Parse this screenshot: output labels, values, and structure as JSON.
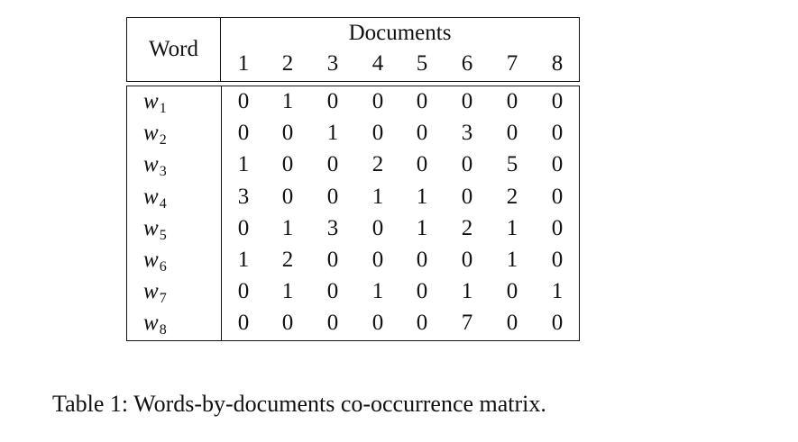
{
  "table": {
    "word_header": "Word",
    "documents_header": "Documents",
    "doc_numbers": [
      "1",
      "2",
      "3",
      "4",
      "5",
      "6",
      "7",
      "8"
    ],
    "rows": [
      {
        "word": "w",
        "sub": "1",
        "values": [
          "0",
          "1",
          "0",
          "0",
          "0",
          "0",
          "0",
          "0"
        ]
      },
      {
        "word": "w",
        "sub": "2",
        "values": [
          "0",
          "0",
          "1",
          "0",
          "0",
          "3",
          "0",
          "0"
        ]
      },
      {
        "word": "w",
        "sub": "3",
        "values": [
          "1",
          "0",
          "0",
          "2",
          "0",
          "0",
          "5",
          "0"
        ]
      },
      {
        "word": "w",
        "sub": "4",
        "values": [
          "3",
          "0",
          "0",
          "1",
          "1",
          "0",
          "2",
          "0"
        ]
      },
      {
        "word": "w",
        "sub": "5",
        "values": [
          "0",
          "1",
          "3",
          "0",
          "1",
          "2",
          "1",
          "0"
        ]
      },
      {
        "word": "w",
        "sub": "6",
        "values": [
          "1",
          "2",
          "0",
          "0",
          "0",
          "0",
          "1",
          "0"
        ]
      },
      {
        "word": "w",
        "sub": "7",
        "values": [
          "0",
          "1",
          "0",
          "1",
          "0",
          "1",
          "0",
          "1"
        ]
      },
      {
        "word": "w",
        "sub": "8",
        "values": [
          "0",
          "0",
          "0",
          "0",
          "0",
          "7",
          "0",
          "0"
        ]
      }
    ]
  },
  "caption": "Table 1:  Words-by-documents co-occurrence matrix."
}
